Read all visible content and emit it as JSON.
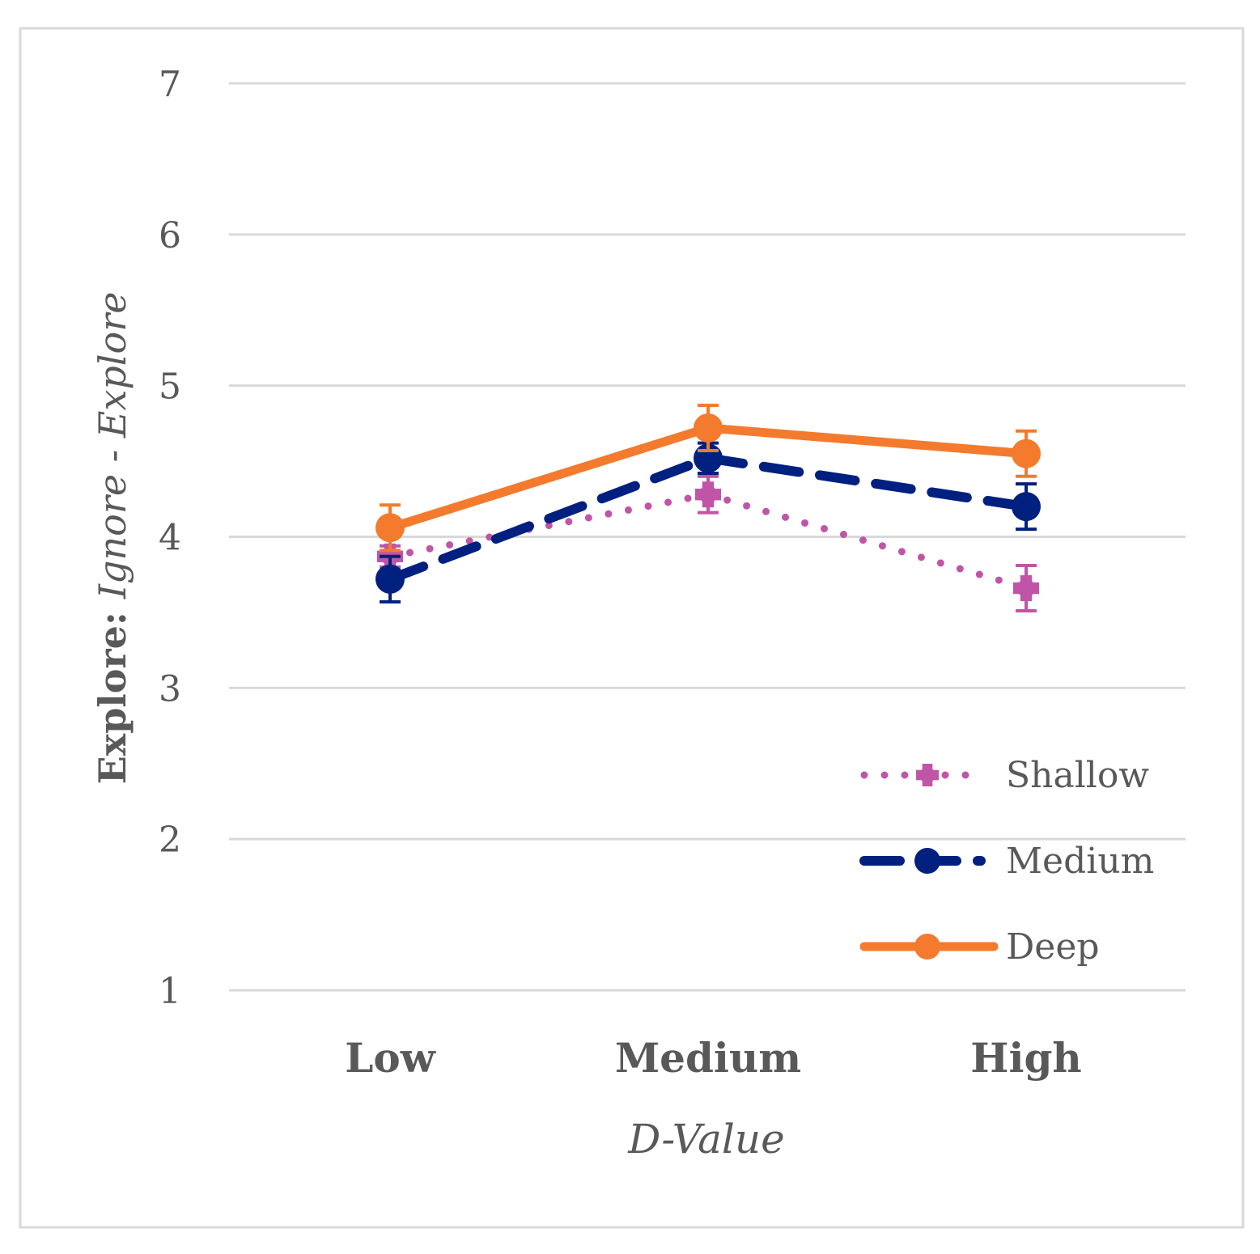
{
  "chart_data": {
    "type": "line",
    "title": "",
    "categories": [
      "Low",
      "Medium",
      "High"
    ],
    "xlabel": "D-Value",
    "ylabel": {
      "prefix": "Explore: ",
      "italic": "Ignore - Explore"
    },
    "ylim": [
      1,
      7
    ],
    "yticks": [
      "1",
      "2",
      "3",
      "4",
      "5",
      "6",
      "7"
    ],
    "grid": true,
    "legend_position": "lower-right",
    "series": [
      {
        "name": "Shallow",
        "style": "dotted",
        "marker": "cross",
        "color": "#C055A8",
        "values": [
          3.87,
          4.28,
          3.66
        ],
        "errors": [
          0.07,
          0.12,
          0.15
        ]
      },
      {
        "name": "Medium",
        "style": "dashed",
        "marker": "circle",
        "color": "#002080",
        "values": [
          3.72,
          4.52,
          4.2
        ],
        "errors": [
          0.15,
          0.1,
          0.15
        ]
      },
      {
        "name": "Deep",
        "style": "solid",
        "marker": "circle",
        "color": "#F47A2E",
        "values": [
          4.06,
          4.72,
          4.55
        ],
        "errors": [
          0.15,
          0.15,
          0.15
        ]
      }
    ]
  }
}
